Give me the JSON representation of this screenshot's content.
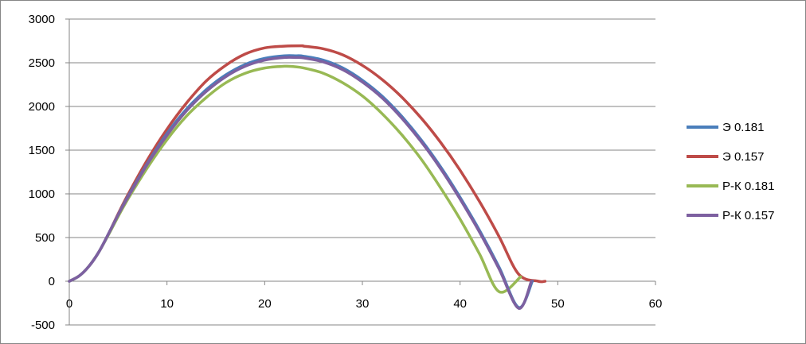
{
  "chart_data": {
    "type": "line",
    "title": "",
    "xlabel": "",
    "ylabel": "",
    "xlim": [
      0,
      60
    ],
    "ylim": [
      -500,
      3000
    ],
    "x_ticks": [
      0,
      10,
      20,
      30,
      40,
      50,
      60
    ],
    "y_ticks": [
      -500,
      0,
      500,
      1000,
      1500,
      2000,
      2500,
      3000
    ],
    "x_tick_labels": [
      "0",
      "10",
      "20",
      "30",
      "40",
      "50",
      "60"
    ],
    "y_tick_labels": [
      "-500",
      "0",
      "500",
      "1000",
      "1500",
      "2000",
      "2500",
      "3000"
    ],
    "grid": "horizontal",
    "legend_position": "right",
    "series": [
      {
        "name": "Э 0.181",
        "color": "#4A7EBB",
        "x": [
          0,
          1,
          2,
          3,
          4,
          5,
          6,
          8,
          10,
          12,
          14,
          16,
          18,
          20,
          22,
          23.2,
          24,
          26,
          28,
          30,
          32,
          34,
          36,
          38,
          40,
          42,
          44,
          46,
          47.4
        ],
        "y": [
          0,
          60,
          170,
          330,
          540,
          760,
          970,
          1350,
          1690,
          1970,
          2190,
          2360,
          2480,
          2550,
          2580,
          2580,
          2575,
          2530,
          2440,
          2300,
          2120,
          1890,
          1620,
          1310,
          960,
          580,
          160,
          -300,
          0
        ]
      },
      {
        "name": "Э 0.157",
        "color": "#BE4B48",
        "x": [
          0,
          1,
          2,
          3,
          4,
          5,
          6,
          8,
          10,
          12,
          14,
          16,
          18,
          20,
          22,
          23.8,
          24,
          26,
          28,
          30,
          32,
          34,
          36,
          38,
          40,
          42,
          44,
          46,
          48,
          48.7
        ],
        "y": [
          0,
          60,
          170,
          330,
          540,
          770,
          990,
          1390,
          1740,
          2040,
          2290,
          2470,
          2600,
          2670,
          2690,
          2695,
          2690,
          2660,
          2590,
          2470,
          2310,
          2110,
          1870,
          1590,
          1270,
          910,
          510,
          80,
          0,
          0
        ]
      },
      {
        "name": "Р-К 0.181",
        "color": "#98B954",
        "x": [
          0,
          1,
          2,
          3,
          4,
          5,
          6,
          8,
          10,
          12,
          14,
          16,
          18,
          20,
          22,
          23,
          24,
          26,
          28,
          30,
          32,
          34,
          36,
          38,
          40,
          42,
          44,
          46.2
        ],
        "y": [
          0,
          60,
          170,
          330,
          530,
          740,
          940,
          1300,
          1620,
          1890,
          2100,
          2270,
          2380,
          2440,
          2460,
          2455,
          2440,
          2380,
          2270,
          2120,
          1920,
          1680,
          1400,
          1070,
          710,
          310,
          -120,
          50
        ]
      },
      {
        "name": "Р-К 0.157",
        "color": "#7D60A0",
        "x": [
          0,
          1,
          2,
          3,
          4,
          5,
          6,
          8,
          10,
          12,
          14,
          16,
          18,
          20,
          22,
          23.2,
          24,
          26,
          28,
          30,
          32,
          34,
          36,
          38,
          40,
          42,
          44,
          46,
          47.3
        ],
        "y": [
          0,
          60,
          170,
          330,
          540,
          760,
          960,
          1340,
          1670,
          1950,
          2170,
          2340,
          2460,
          2530,
          2560,
          2560,
          2555,
          2510,
          2420,
          2280,
          2100,
          1870,
          1600,
          1290,
          940,
          560,
          140,
          -310,
          0
        ]
      }
    ]
  }
}
